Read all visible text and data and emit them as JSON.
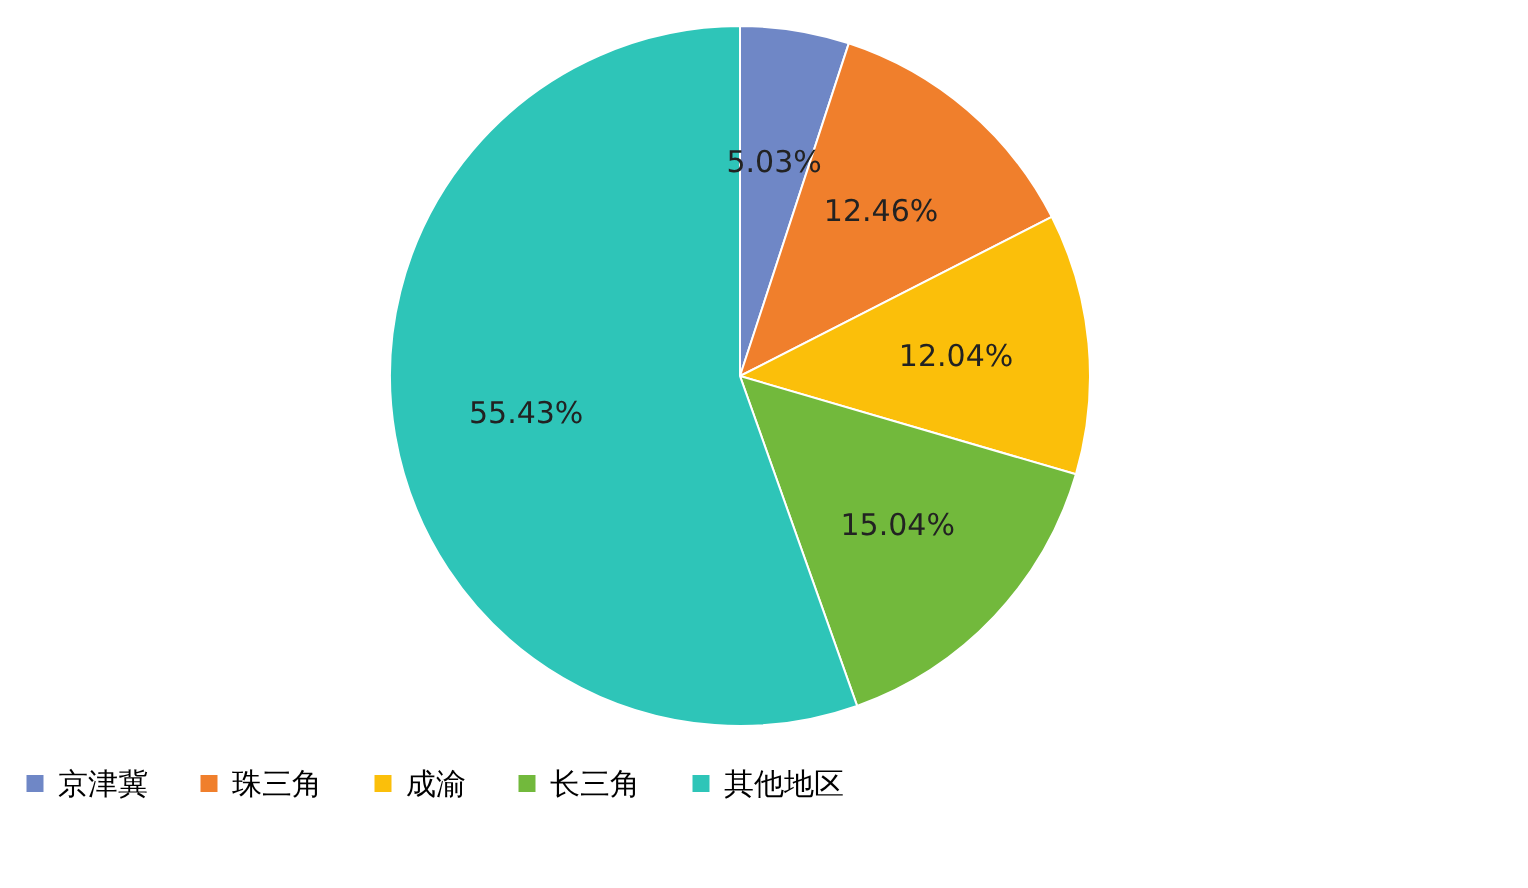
{
  "chart_data": {
    "type": "pie",
    "categories": [
      "京津冀",
      "珠三角",
      "成渝",
      "长三角",
      "其他地区"
    ],
    "values": [
      5.03,
      12.46,
      12.04,
      15.04,
      55.43
    ],
    "colors": [
      "#6f87c6",
      "#f07f2c",
      "#fbbf0a",
      "#72b93c",
      "#2ec5b8"
    ],
    "value_labels": [
      "5.03%",
      "12.46%",
      "12.04%",
      "15.04%",
      "55.43%"
    ],
    "legend": "bottom"
  }
}
